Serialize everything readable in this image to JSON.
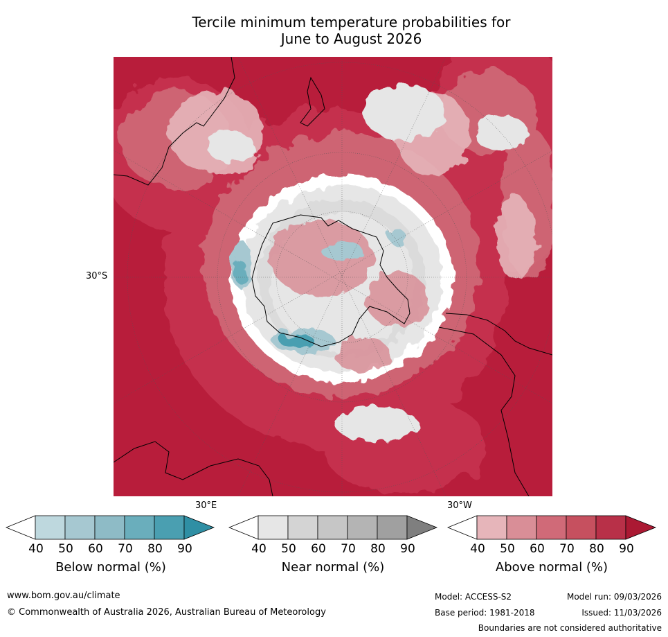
{
  "title": {
    "line1": "Tercile minimum temperature probabilities for",
    "line2": "June to August 2026"
  },
  "map": {
    "lat_label": "30°S",
    "lon_label_east": "30°E",
    "lon_label_west": "30°W",
    "colors": {
      "ocean_high": "#b81d3b",
      "above_80": "#c63350",
      "above_70": "#d06a78",
      "above_60": "#d98e97",
      "above_50": "#e6b5ba",
      "near_40": "#e6e6e6",
      "near_50": "#d4d4d4",
      "below_50": "#a6c8d1",
      "below_70": "#6aaebc",
      "below_80": "#4a9fb1",
      "land_outline": "#000000",
      "border_outline": "#8a8a8a"
    }
  },
  "legend": [
    {
      "name": "Below normal (%)",
      "colors": [
        "#ffffff",
        "#bed8de",
        "#a6c8d1",
        "#8ebbc6",
        "#6aaebc",
        "#4a9fb1",
        "#2f8fa4"
      ],
      "ticks": [
        "40",
        "50",
        "60",
        "70",
        "80",
        "90"
      ]
    },
    {
      "name": "Near normal (%)",
      "colors": [
        "#ffffff",
        "#e6e6e6",
        "#d4d4d4",
        "#c6c6c6",
        "#b4b4b4",
        "#a0a0a0",
        "#7f7f7f"
      ],
      "ticks": [
        "40",
        "50",
        "60",
        "70",
        "80",
        "90"
      ]
    },
    {
      "name": "Above normal (%)",
      "colors": [
        "#ffffff",
        "#e6b5ba",
        "#d98e97",
        "#d06a78",
        "#c6505f",
        "#b83048",
        "#ab1933"
      ],
      "ticks": [
        "40",
        "50",
        "60",
        "70",
        "80",
        "90"
      ]
    }
  ],
  "footer": {
    "website": "www.bom.gov.au/climate",
    "copyright": "© Commonwealth of Australia 2026, Australian Bureau of Meteorology",
    "model": "Model: ACCESS-S2",
    "model_run": "Model run: 09/03/2026",
    "base_period": "Base period: 1981-2018",
    "issued": "Issued: 11/03/2026",
    "disclaimer": "Boundaries are not considered authoritative"
  }
}
